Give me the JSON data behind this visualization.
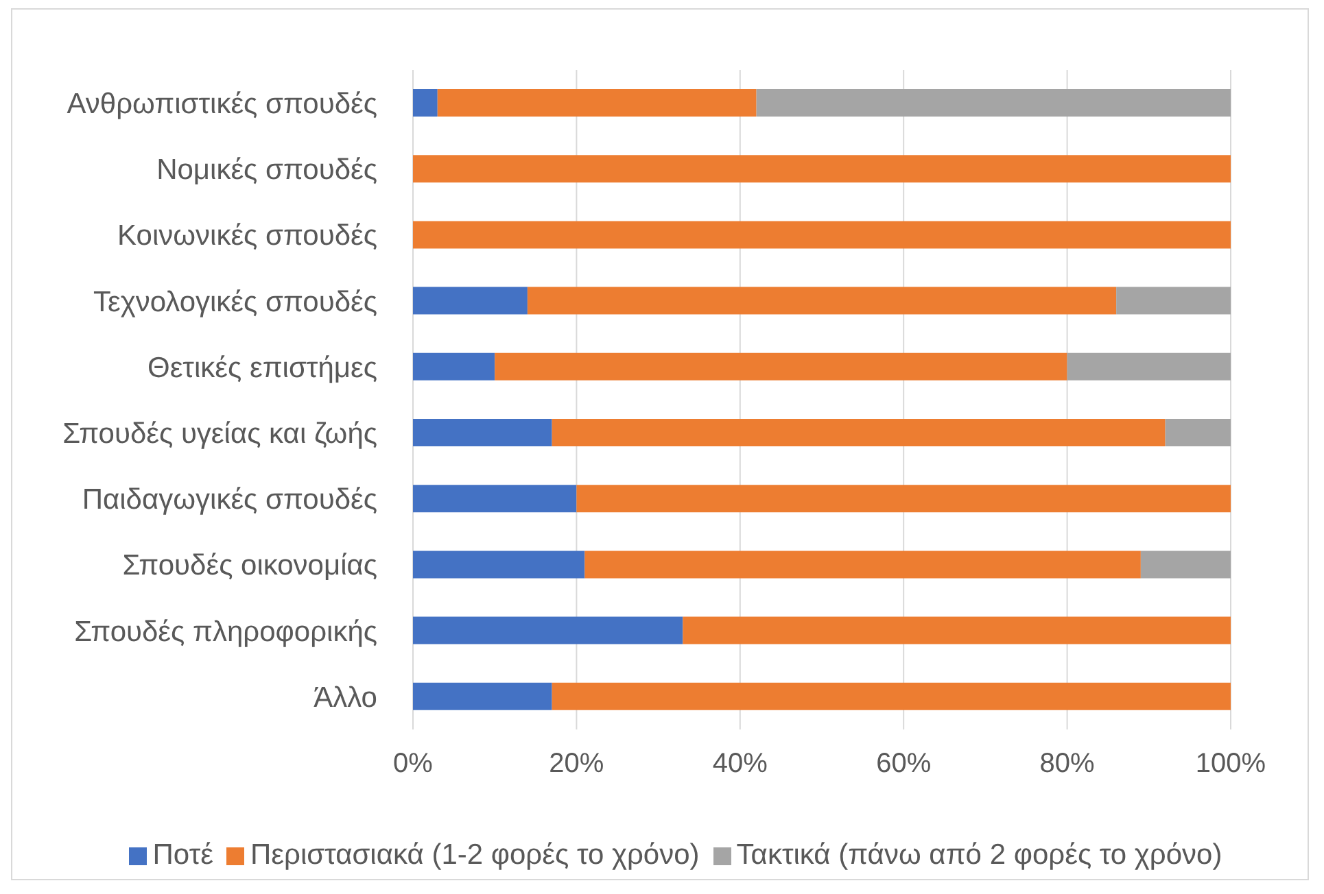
{
  "chart_data": {
    "type": "bar",
    "orientation": "horizontal",
    "stacked": true,
    "categories": [
      "Ανθρωπιστικές σπουδές",
      "Νομικές σπουδές",
      "Κοινωνικές σπουδές",
      "Τεχνολογικές σπουδές",
      "Θετικές επιστήμες",
      "Σπουδές υγείας και ζωής",
      "Παιδαγωγικές σπουδές",
      "Σπουδές οικονομίας",
      "Σπουδές πληροφορικής",
      "Άλλο"
    ],
    "series": [
      {
        "name": "Ποτέ",
        "color": "#4472c4",
        "values": [
          3,
          0,
          0,
          14,
          10,
          17,
          20,
          21,
          33,
          17
        ]
      },
      {
        "name": "Περιστασιακά (1-2 φορές το χρόνο)",
        "color": "#ed7d31",
        "values": [
          39,
          100,
          100,
          72,
          70,
          75,
          80,
          68,
          67,
          83
        ]
      },
      {
        "name": "Τακτικά (πάνω από 2 φορές το χρόνο)",
        "color": "#a5a5a5",
        "values": [
          58,
          0,
          0,
          14,
          20,
          8,
          0,
          11,
          0,
          0
        ]
      }
    ],
    "xlim": [
      0,
      100
    ],
    "xticks": [
      {
        "value": 0,
        "label": "0%"
      },
      {
        "value": 20,
        "label": "20%"
      },
      {
        "value": 40,
        "label": "40%"
      },
      {
        "value": 60,
        "label": "60%"
      },
      {
        "value": 80,
        "label": "80%"
      },
      {
        "value": 100,
        "label": "100%"
      }
    ],
    "grid": "x",
    "legend": "bottom"
  }
}
